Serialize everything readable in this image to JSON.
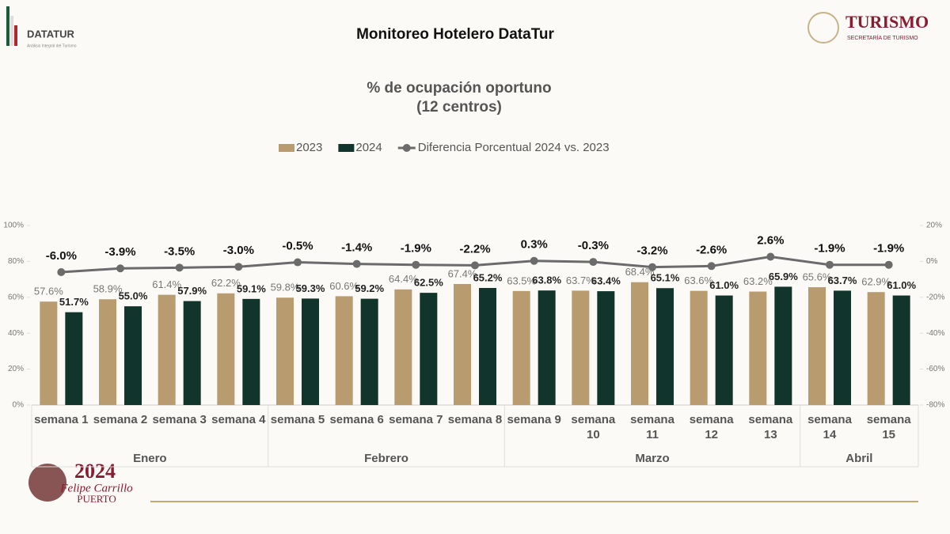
{
  "header": {
    "title": "Monitoreo Hotelero DataTur",
    "logo_left": "DATATUR",
    "logo_left_sub": "Análisis Integral del Turismo",
    "logo_right": "TURISMO",
    "logo_right_sub": "SECRETARÍA DE TURISMO",
    "footer_year": "2024",
    "footer_name": "Felipe Carrillo",
    "footer_name2": "PUERTO"
  },
  "chart_data": {
    "type": "bar",
    "title": "% de ocupación oportuno",
    "subtitle": "(12 centros)",
    "categories": [
      "semana 1",
      "semana 2",
      "semana 3",
      "semana 4",
      "semana 5",
      "semana 6",
      "semana 7",
      "semana 8",
      "semana 9",
      "semana 10",
      "semana 11",
      "semana 12",
      "semana 13",
      "semana 14",
      "semana 15"
    ],
    "groups": [
      {
        "label": "Enero",
        "count": 4
      },
      {
        "label": "Febrero",
        "count": 4
      },
      {
        "label": "Marzo",
        "count": 5
      },
      {
        "label": "Abril",
        "count": 2
      }
    ],
    "series": [
      {
        "name": "2023",
        "color": "#b89b6f",
        "values": [
          57.6,
          58.9,
          61.4,
          62.2,
          59.8,
          60.6,
          64.4,
          67.4,
          63.5,
          63.7,
          68.4,
          63.6,
          63.2,
          65.6,
          62.9
        ],
        "value_labels": [
          "57.6%",
          "58.9%",
          "61.4%",
          "62.2%",
          "59.8%",
          "60.6%",
          "64.4%",
          "67.4%",
          "63.5%",
          "63.7%",
          "68.4%",
          "63.6%",
          "63.2%",
          "65.6%",
          "62.9%"
        ]
      },
      {
        "name": "2024",
        "color": "#12352b",
        "values": [
          51.7,
          55.0,
          57.9,
          59.1,
          59.3,
          59.2,
          62.5,
          65.2,
          63.8,
          63.4,
          65.1,
          61.0,
          65.9,
          63.7,
          61.0
        ],
        "value_labels": [
          "51.7%",
          "55.0%",
          "57.9%",
          "59.1%",
          "59.3%",
          "59.2%",
          "62.5%",
          "65.2%",
          "63.8%",
          "63.4%",
          "65.1%",
          "61.0%",
          "65.9%",
          "63.7%",
          "61.0%"
        ]
      },
      {
        "name": "Diferencia Porcentual 2024 vs. 2023",
        "type": "line",
        "axis": "y2",
        "color": "#6b6b6b",
        "values": [
          -6.0,
          -3.9,
          -3.5,
          -3.0,
          -0.5,
          -1.4,
          -1.9,
          -2.2,
          0.3,
          -0.3,
          -3.2,
          -2.6,
          2.6,
          -1.9,
          -1.9
        ],
        "value_labels": [
          "-6.0%",
          "-3.9%",
          "-3.5%",
          "-3.0%",
          "-0.5%",
          "-1.4%",
          "-1.9%",
          "-2.2%",
          "0.3%",
          "-0.3%",
          "-3.2%",
          "-2.6%",
          "2.6%",
          "-1.9%",
          "-1.9%"
        ]
      }
    ],
    "ylim": [
      0,
      100
    ],
    "yticks": [
      {
        "value": 0,
        "label": "0%"
      },
      {
        "value": 20,
        "label": "20%"
      },
      {
        "value": 40,
        "label": "40%"
      },
      {
        "value": 60,
        "label": "60%"
      },
      {
        "value": 80,
        "label": "80%"
      },
      {
        "value": 100,
        "label": "100%"
      }
    ],
    "y2lim": [
      -80,
      20
    ],
    "y2ticks": [
      {
        "value": -80,
        "label": "-80%"
      },
      {
        "value": -60,
        "label": "-60%"
      },
      {
        "value": -40,
        "label": "-40%"
      },
      {
        "value": -20,
        "label": "-20%"
      },
      {
        "value": 0,
        "label": "0%"
      },
      {
        "value": 20,
        "label": "20%"
      }
    ],
    "legend": "top",
    "grid": false
  }
}
